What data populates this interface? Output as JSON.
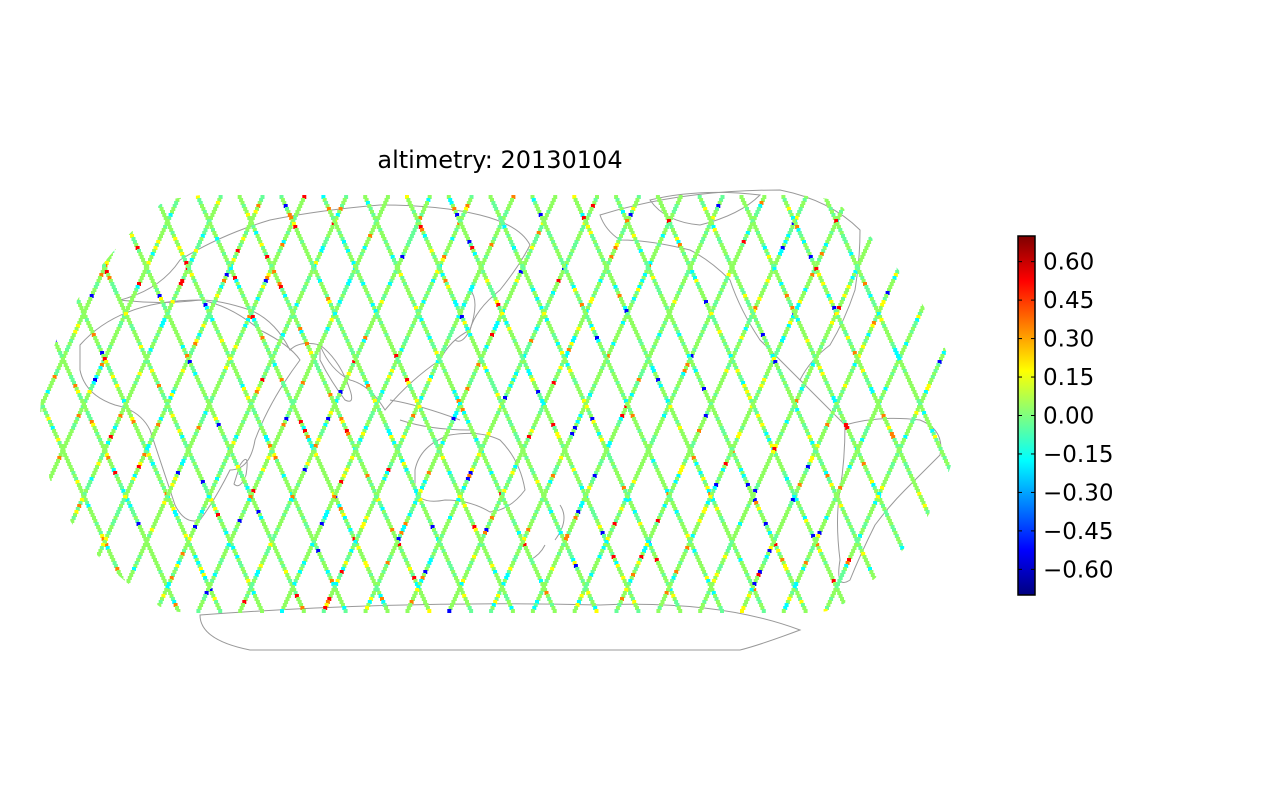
{
  "figure": {
    "title": "altimetry: 20130104"
  },
  "colorbar": {
    "ticks": [
      {
        "value": 0.6,
        "label": "0.60"
      },
      {
        "value": 0.45,
        "label": "0.45"
      },
      {
        "value": 0.3,
        "label": "0.30"
      },
      {
        "value": 0.15,
        "label": "0.15"
      },
      {
        "value": 0.0,
        "label": "0.00"
      },
      {
        "value": -0.15,
        "label": "−0.15"
      },
      {
        "value": -0.3,
        "label": "−0.30"
      },
      {
        "value": -0.45,
        "label": "−0.45"
      },
      {
        "value": -0.6,
        "label": "−0.60"
      }
    ],
    "range": [
      -0.7,
      0.7
    ],
    "colormap": "jet",
    "colors": [
      "#00007f",
      "#0000ff",
      "#007fff",
      "#00ffff",
      "#7fff7f",
      "#ffff00",
      "#ff7f00",
      "#ff0000",
      "#7f0000"
    ]
  },
  "map": {
    "projection": "robinson",
    "coastline_color": "#999999",
    "track_default_color": "#8fff60"
  }
}
